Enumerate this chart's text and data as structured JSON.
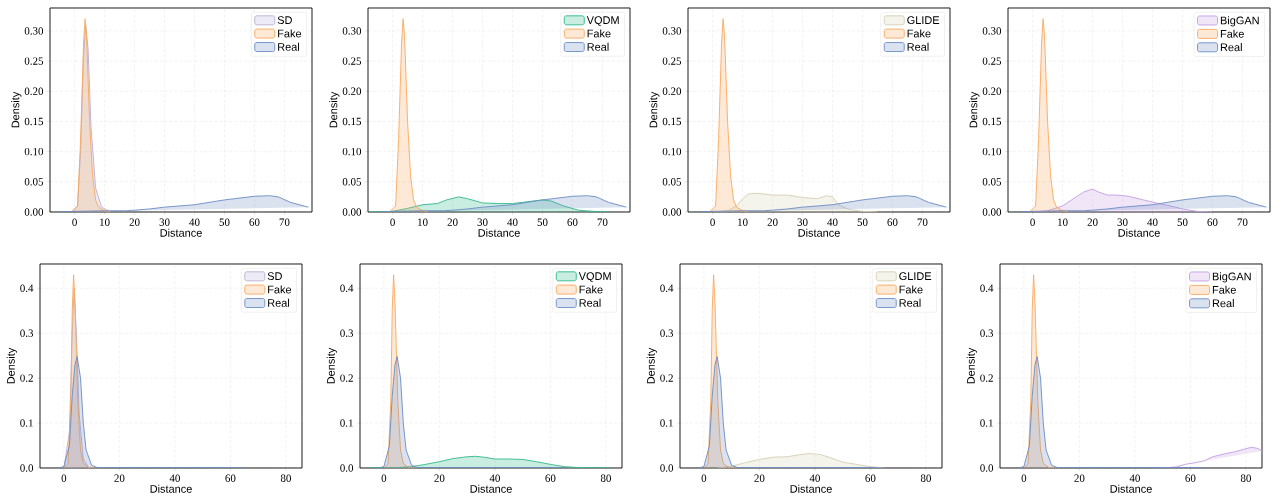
{
  "chart_data": [
    {
      "type": "area",
      "xlabel": "Distance",
      "ylabel": "Density",
      "grid": true,
      "legend": "top right",
      "xlim": [
        -8.2,
        79.2
      ],
      "ylim": [
        0,
        0.338
      ],
      "xticks": [
        0,
        10,
        20,
        30,
        40,
        50,
        60,
        70
      ],
      "yticks": [
        {
          "value": 0,
          "label": "0.00"
        },
        {
          "value": 0.05,
          "label": "0.05"
        },
        {
          "value": 0.1,
          "label": "0.10"
        },
        {
          "value": 0.15,
          "label": "0.15"
        },
        {
          "value": 0.2,
          "label": "0.20"
        },
        {
          "value": 0.25,
          "label": "0.25"
        },
        {
          "value": 0.3,
          "label": "0.30"
        }
      ],
      "series": [
        {
          "name": "SD",
          "color": "#b9aed6",
          "x": [
            -1,
            1,
            2,
            3,
            3.7,
            4.5,
            5.5,
            7,
            9,
            12
          ],
          "values": [
            0,
            0.01,
            0.1,
            0.26,
            0.31,
            0.27,
            0.14,
            0.04,
            0.008,
            0
          ]
        },
        {
          "name": "Fake",
          "color": "#f9a85c",
          "x": [
            -1,
            1,
            2,
            3,
            3.5,
            4,
            5,
            6,
            7,
            8,
            10,
            12
          ],
          "values": [
            0,
            0.01,
            0.12,
            0.28,
            0.32,
            0.29,
            0.15,
            0.06,
            0.02,
            0.008,
            0.002,
            0
          ]
        },
        {
          "name": "Real",
          "color": "#6a8cc4",
          "x": [
            -5,
            0,
            10,
            17,
            20,
            25,
            30,
            35,
            40,
            45,
            50,
            55,
            60,
            65,
            68,
            72,
            78
          ],
          "values": [
            0,
            0.001,
            0.002,
            0.002,
            0.003,
            0.005,
            0.008,
            0.01,
            0.012,
            0.016,
            0.02,
            0.023,
            0.026,
            0.027,
            0.025,
            0.016,
            0.008
          ]
        }
      ]
    },
    {
      "type": "area",
      "xlabel": "Distance",
      "ylabel": "Density",
      "grid": true,
      "legend": "top right",
      "xlim": [
        -8.2,
        79.2
      ],
      "ylim": [
        0,
        0.338
      ],
      "xticks": [
        0,
        10,
        20,
        30,
        40,
        50,
        60,
        70
      ],
      "yticks": [
        {
          "value": 0,
          "label": "0.00"
        },
        {
          "value": 0.05,
          "label": "0.05"
        },
        {
          "value": 0.1,
          "label": "0.10"
        },
        {
          "value": 0.15,
          "label": "0.15"
        },
        {
          "value": 0.2,
          "label": "0.20"
        },
        {
          "value": 0.25,
          "label": "0.25"
        },
        {
          "value": 0.3,
          "label": "0.30"
        }
      ],
      "series": [
        {
          "name": "VQDM",
          "color": "#2db88b",
          "x": [
            -8,
            0,
            5,
            10,
            15,
            18,
            22,
            25,
            30,
            35,
            40,
            45,
            50,
            53,
            57,
            62,
            67,
            72
          ],
          "values": [
            0,
            0.001,
            0.006,
            0.012,
            0.014,
            0.02,
            0.025,
            0.022,
            0.015,
            0.014,
            0.014,
            0.017,
            0.02,
            0.018,
            0.01,
            0.003,
            0.001,
            0
          ]
        },
        {
          "name": "Fake",
          "color": "#f9a85c",
          "x": [
            -1,
            1,
            2,
            3,
            3.5,
            4,
            5,
            6,
            7,
            8,
            10,
            12
          ],
          "values": [
            0,
            0.01,
            0.12,
            0.28,
            0.32,
            0.29,
            0.15,
            0.06,
            0.02,
            0.008,
            0.002,
            0
          ]
        },
        {
          "name": "Real",
          "color": "#6a8cc4",
          "x": [
            -5,
            0,
            10,
            17,
            20,
            25,
            30,
            35,
            40,
            45,
            50,
            55,
            60,
            65,
            68,
            72,
            78
          ],
          "values": [
            0,
            0.001,
            0.002,
            0.002,
            0.003,
            0.005,
            0.008,
            0.01,
            0.012,
            0.016,
            0.02,
            0.023,
            0.026,
            0.027,
            0.025,
            0.016,
            0.008
          ]
        }
      ]
    },
    {
      "type": "area",
      "xlabel": "Distance",
      "ylabel": "Density",
      "grid": true,
      "legend": "top right",
      "xlim": [
        -8.2,
        79.2
      ],
      "ylim": [
        0,
        0.338
      ],
      "xticks": [
        0,
        10,
        20,
        30,
        40,
        50,
        60,
        70
      ],
      "yticks": [
        {
          "value": 0,
          "label": "0.00"
        },
        {
          "value": 0.05,
          "label": "0.05"
        },
        {
          "value": 0.1,
          "label": "0.10"
        },
        {
          "value": 0.15,
          "label": "0.15"
        },
        {
          "value": 0.2,
          "label": "0.20"
        },
        {
          "value": 0.25,
          "label": "0.25"
        },
        {
          "value": 0.3,
          "label": "0.30"
        }
      ],
      "series": [
        {
          "name": "GLIDE",
          "color": "#d3cfb2",
          "x": [
            0,
            5,
            8,
            10,
            12,
            15,
            20,
            25,
            30,
            35,
            38,
            40,
            42,
            45,
            50,
            55
          ],
          "values": [
            0,
            0.002,
            0.01,
            0.022,
            0.03,
            0.031,
            0.028,
            0.028,
            0.024,
            0.022,
            0.027,
            0.025,
            0.012,
            0.005,
            0.001,
            0
          ]
        },
        {
          "name": "Fake",
          "color": "#f9a85c",
          "x": [
            -1,
            1,
            2,
            3,
            3.5,
            4,
            5,
            6,
            7,
            8,
            10,
            12
          ],
          "values": [
            0,
            0.01,
            0.12,
            0.28,
            0.32,
            0.29,
            0.15,
            0.06,
            0.02,
            0.008,
            0.002,
            0
          ]
        },
        {
          "name": "Real",
          "color": "#6a8cc4",
          "x": [
            -5,
            0,
            10,
            17,
            20,
            25,
            30,
            35,
            40,
            45,
            50,
            55,
            60,
            65,
            68,
            72,
            78
          ],
          "values": [
            0,
            0.001,
            0.002,
            0.002,
            0.003,
            0.005,
            0.008,
            0.01,
            0.012,
            0.016,
            0.02,
            0.023,
            0.026,
            0.027,
            0.025,
            0.016,
            0.008
          ]
        }
      ]
    },
    {
      "type": "area",
      "xlabel": "Distance",
      "ylabel": "Density",
      "grid": true,
      "legend": "top right",
      "xlim": [
        -8.2,
        79.2
      ],
      "ylim": [
        0,
        0.338
      ],
      "xticks": [
        0,
        10,
        20,
        30,
        40,
        50,
        60,
        70
      ],
      "yticks": [
        {
          "value": 0,
          "label": "0.00"
        },
        {
          "value": 0.05,
          "label": "0.05"
        },
        {
          "value": 0.1,
          "label": "0.10"
        },
        {
          "value": 0.15,
          "label": "0.15"
        },
        {
          "value": 0.2,
          "label": "0.20"
        },
        {
          "value": 0.25,
          "label": "0.25"
        },
        {
          "value": 0.3,
          "label": "0.30"
        }
      ],
      "series": [
        {
          "name": "BigGAN",
          "color": "#c39de3",
          "x": [
            0,
            5,
            10,
            13,
            17,
            20,
            22,
            25,
            28,
            32,
            37,
            42,
            46,
            50,
            55,
            60
          ],
          "values": [
            0,
            0.002,
            0.01,
            0.02,
            0.033,
            0.038,
            0.033,
            0.028,
            0.028,
            0.026,
            0.02,
            0.014,
            0.01,
            0.005,
            0.001,
            0
          ]
        },
        {
          "name": "Fake",
          "color": "#f9a85c",
          "x": [
            -1,
            1,
            2,
            3,
            3.5,
            4,
            5,
            6,
            7,
            8,
            10,
            12
          ],
          "values": [
            0,
            0.01,
            0.12,
            0.28,
            0.32,
            0.29,
            0.15,
            0.06,
            0.02,
            0.008,
            0.002,
            0
          ]
        },
        {
          "name": "Real",
          "color": "#6a8cc4",
          "x": [
            -5,
            0,
            10,
            17,
            20,
            25,
            30,
            35,
            40,
            45,
            50,
            55,
            60,
            65,
            68,
            72,
            78
          ],
          "values": [
            0,
            0.001,
            0.002,
            0.002,
            0.003,
            0.005,
            0.008,
            0.01,
            0.012,
            0.016,
            0.02,
            0.023,
            0.026,
            0.027,
            0.025,
            0.016,
            0.008
          ]
        }
      ]
    },
    {
      "type": "area",
      "xlabel": "Distance",
      "ylabel": "Density",
      "grid": true,
      "legend": "top right",
      "xlim": [
        -8.6,
        85.8
      ],
      "ylim": [
        0,
        0.454
      ],
      "xticks": [
        0,
        20,
        40,
        60,
        80
      ],
      "yticks": [
        {
          "value": 0,
          "label": "0.0"
        },
        {
          "value": 0.1,
          "label": "0.1"
        },
        {
          "value": 0.2,
          "label": "0.2"
        },
        {
          "value": 0.3,
          "label": "0.3"
        },
        {
          "value": 0.4,
          "label": "0.4"
        }
      ],
      "series": [
        {
          "name": "SD",
          "color": "#b9aed6",
          "x": [
            0,
            2,
            3,
            3.7,
            4.5,
            5.5,
            7,
            9
          ],
          "values": [
            0,
            0.08,
            0.3,
            0.4,
            0.3,
            0.12,
            0.02,
            0
          ]
        },
        {
          "name": "Fake",
          "color": "#f9a85c",
          "x": [
            0,
            1.5,
            2.5,
            3,
            3.5,
            4,
            5,
            6,
            7,
            9,
            12
          ],
          "values": [
            0,
            0.01,
            0.15,
            0.35,
            0.43,
            0.37,
            0.15,
            0.04,
            0.01,
            0.001,
            0
          ]
        },
        {
          "name": "Real",
          "color": "#6a8cc4",
          "x": [
            -2,
            0,
            2,
            3,
            4,
            4.8,
            6,
            7,
            8,
            10,
            12,
            20,
            40,
            60,
            65
          ],
          "values": [
            0,
            0.003,
            0.05,
            0.16,
            0.23,
            0.248,
            0.2,
            0.1,
            0.04,
            0.006,
            0.001,
            0.001,
            0.001,
            0.001,
            0
          ]
        }
      ]
    },
    {
      "type": "area",
      "xlabel": "Distance",
      "ylabel": "Density",
      "grid": true,
      "legend": "top right",
      "xlim": [
        -8.6,
        85.8
      ],
      "ylim": [
        0,
        0.454
      ],
      "xticks": [
        0,
        20,
        40,
        60,
        80
      ],
      "yticks": [
        {
          "value": 0,
          "label": "0.0"
        },
        {
          "value": 0.1,
          "label": "0.1"
        },
        {
          "value": 0.2,
          "label": "0.2"
        },
        {
          "value": 0.3,
          "label": "0.3"
        },
        {
          "value": 0.4,
          "label": "0.4"
        }
      ],
      "series": [
        {
          "name": "VQDM",
          "color": "#2db88b",
          "x": [
            -5,
            0,
            5,
            10,
            15,
            20,
            25,
            30,
            33,
            36,
            40,
            45,
            50,
            55,
            60,
            65,
            70,
            82
          ],
          "values": [
            0,
            0.001,
            0.001,
            0.003,
            0.008,
            0.014,
            0.021,
            0.025,
            0.026,
            0.024,
            0.02,
            0.02,
            0.019,
            0.014,
            0.008,
            0.003,
            0.001,
            0
          ]
        },
        {
          "name": "Fake",
          "color": "#f9a85c",
          "x": [
            0,
            1.5,
            2.5,
            3,
            3.5,
            4,
            5,
            6,
            7,
            9,
            12
          ],
          "values": [
            0,
            0.01,
            0.15,
            0.35,
            0.43,
            0.37,
            0.15,
            0.04,
            0.01,
            0.001,
            0
          ]
        },
        {
          "name": "Real",
          "color": "#6a8cc4",
          "x": [
            -2,
            0,
            2,
            3,
            4,
            4.8,
            6,
            7,
            8,
            10,
            12,
            20,
            40,
            60,
            65
          ],
          "values": [
            0,
            0.003,
            0.05,
            0.16,
            0.23,
            0.248,
            0.2,
            0.1,
            0.04,
            0.006,
            0.001,
            0.001,
            0.001,
            0.001,
            0
          ]
        }
      ]
    },
    {
      "type": "area",
      "xlabel": "Distance",
      "ylabel": "Density",
      "grid": true,
      "legend": "top right",
      "xlim": [
        -8.6,
        85.8
      ],
      "ylim": [
        0,
        0.454
      ],
      "xticks": [
        0,
        20,
        40,
        60,
        80
      ],
      "yticks": [
        {
          "value": 0,
          "label": "0.0"
        },
        {
          "value": 0.1,
          "label": "0.1"
        },
        {
          "value": 0.2,
          "label": "0.2"
        },
        {
          "value": 0.3,
          "label": "0.3"
        },
        {
          "value": 0.4,
          "label": "0.4"
        }
      ],
      "series": [
        {
          "name": "GLIDE",
          "color": "#d3cfb2",
          "x": [
            5,
            10,
            15,
            20,
            25,
            30,
            35,
            38,
            42,
            46,
            50,
            55,
            60,
            65
          ],
          "values": [
            0,
            0.004,
            0.012,
            0.019,
            0.024,
            0.025,
            0.03,
            0.032,
            0.03,
            0.022,
            0.013,
            0.008,
            0.003,
            0
          ]
        },
        {
          "name": "Fake",
          "color": "#f9a85c",
          "x": [
            0,
            1.5,
            2.5,
            3,
            3.5,
            4,
            5,
            6,
            7,
            9,
            12
          ],
          "values": [
            0,
            0.01,
            0.15,
            0.35,
            0.43,
            0.37,
            0.15,
            0.04,
            0.01,
            0.001,
            0
          ]
        },
        {
          "name": "Real",
          "color": "#6a8cc4",
          "x": [
            -2,
            0,
            2,
            3,
            4,
            4.8,
            6,
            7,
            8,
            10,
            12,
            20,
            40,
            60,
            65
          ],
          "values": [
            0,
            0.003,
            0.05,
            0.16,
            0.23,
            0.248,
            0.2,
            0.1,
            0.04,
            0.006,
            0.001,
            0.001,
            0.001,
            0.001,
            0
          ]
        }
      ]
    },
    {
      "type": "area",
      "xlabel": "Distance",
      "ylabel": "Density",
      "grid": true,
      "legend": "top right",
      "xlim": [
        -8.6,
        85.8
      ],
      "ylim": [
        0,
        0.454
      ],
      "xticks": [
        0,
        20,
        40,
        60,
        80
      ],
      "yticks": [
        {
          "value": 0,
          "label": "0.0"
        },
        {
          "value": 0.1,
          "label": "0.1"
        },
        {
          "value": 0.2,
          "label": "0.2"
        },
        {
          "value": 0.3,
          "label": "0.3"
        },
        {
          "value": 0.4,
          "label": "0.4"
        }
      ],
      "series": [
        {
          "name": "BigGAN",
          "color": "#c39de3",
          "x": [
            50,
            55,
            58,
            62,
            65,
            68,
            72,
            76,
            80,
            82,
            84,
            85.8
          ],
          "values": [
            0,
            0.002,
            0.008,
            0.012,
            0.016,
            0.025,
            0.031,
            0.036,
            0.043,
            0.046,
            0.044,
            0.038
          ]
        },
        {
          "name": "Fake",
          "color": "#f9a85c",
          "x": [
            0,
            1.5,
            2.5,
            3,
            3.5,
            4,
            5,
            6,
            7,
            9,
            12
          ],
          "values": [
            0,
            0.01,
            0.15,
            0.35,
            0.43,
            0.37,
            0.15,
            0.04,
            0.01,
            0.001,
            0
          ]
        },
        {
          "name": "Real",
          "color": "#6a8cc4",
          "x": [
            -2,
            0,
            2,
            3,
            4,
            4.8,
            6,
            7,
            8,
            10,
            12,
            20,
            40,
            60,
            65
          ],
          "values": [
            0,
            0.003,
            0.05,
            0.16,
            0.23,
            0.248,
            0.2,
            0.1,
            0.04,
            0.006,
            0.001,
            0.001,
            0.001,
            0.001,
            0
          ]
        }
      ]
    }
  ]
}
